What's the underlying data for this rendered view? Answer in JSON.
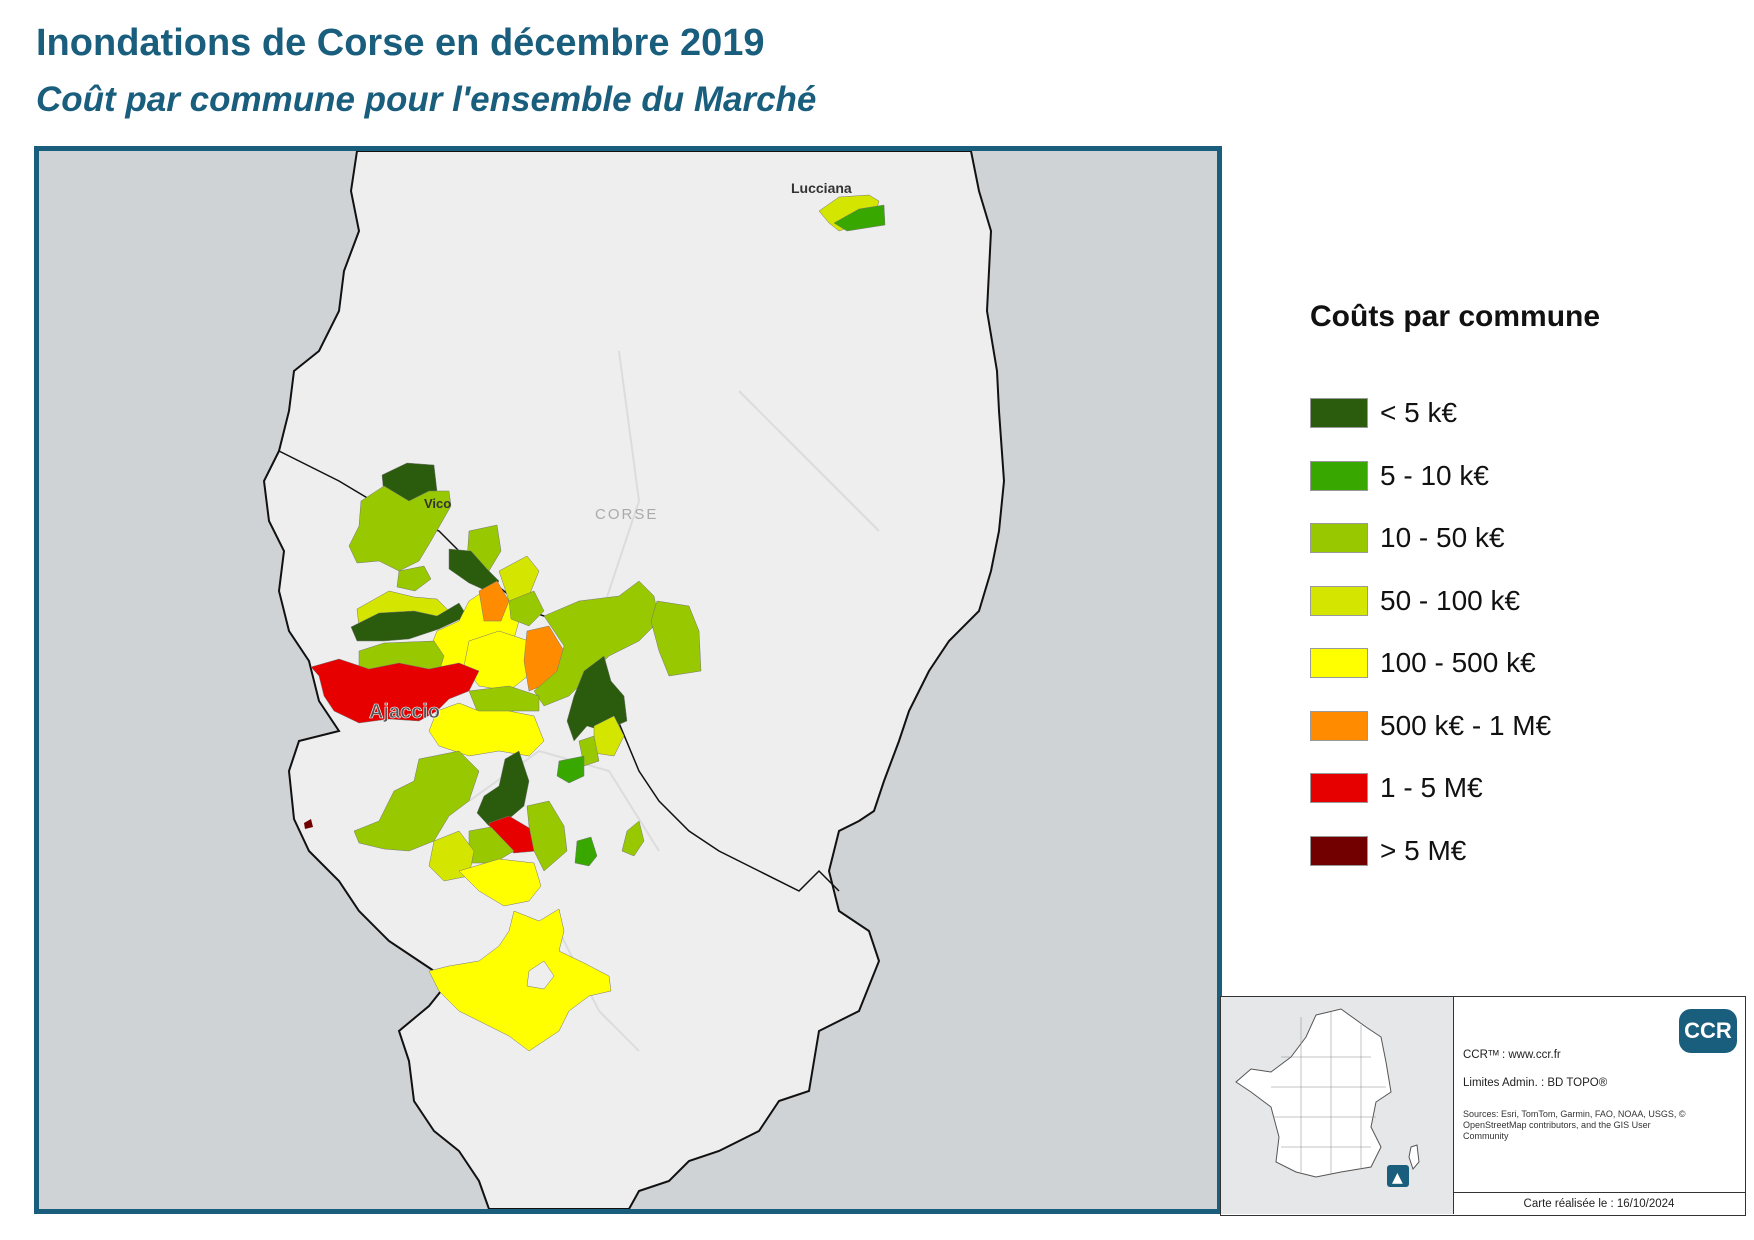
{
  "header": {
    "title": "Inondations de Corse en décembre 2019",
    "subtitle": "Coût par commune pour l'ensemble du Marché"
  },
  "map": {
    "place_labels": {
      "lucciana": "Lucciana",
      "vico": "Vico",
      "corse": "CORSE",
      "ajaccio": "Ajaccio"
    },
    "colors": {
      "sea": "#cfd3d5",
      "land": "#eeeeee",
      "coast": "#111111"
    }
  },
  "legend": {
    "title": "Coûts par commune",
    "items": [
      {
        "label": "< 5 k€",
        "color": "#2b5c0d"
      },
      {
        "label": "5 - 10 k€",
        "color": "#38a800"
      },
      {
        "label": "10 - 50 k€",
        "color": "#98c800"
      },
      {
        "label": "50 - 100 k€",
        "color": "#d4e600"
      },
      {
        "label": "100 - 500 k€",
        "color": "#ffff00"
      },
      {
        "label": "500 k€ - 1 M€",
        "color": "#ff8c00"
      },
      {
        "label": "1 - 5 M€",
        "color": "#e60000"
      },
      {
        "label": "> 5 M€",
        "color": "#730000"
      }
    ]
  },
  "info": {
    "logo": "CCR",
    "ccr_line": "CCRᵀᴹ : www.ccr.fr",
    "limits_line": "Limites Admin. : BD TOPO®",
    "sources": "Sources: Esri, TomTom, Garmin, FAO, NOAA, USGS, © OpenStreetMap contributors, and the GIS User Community",
    "date_line": "Carte réalisée le : 16/10/2024",
    "north_icon": "north-arrow-icon"
  }
}
